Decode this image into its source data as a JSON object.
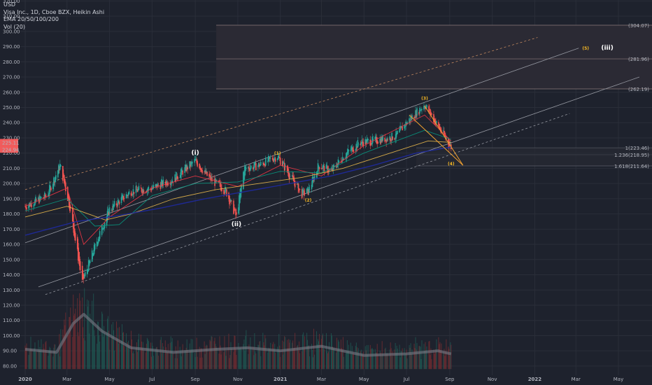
{
  "legend": {
    "currency": "USD",
    "title": "Visa Inc., 1D, Cboe BZX, Heikin Ashi",
    "ema": "EMA 20/50/100/200",
    "vol": "Vol (20)"
  },
  "colors": {
    "background": "#1e222d",
    "up": "#26a69a",
    "down": "#ef5350",
    "ema20": "#f23645",
    "ema50": "#089981",
    "ema100": "#e8b84b",
    "ema200": "#1e2aa0",
    "wave_label": "#f6b824",
    "price_badge": "#f15c5c"
  },
  "price_badges": [
    "225.11",
    "224.94"
  ],
  "chart_data": {
    "type": "line",
    "title": "Visa Inc., 1D, Cboe BZX, Heikin Ashi",
    "y_ticks": [
      80,
      90,
      100,
      110,
      120,
      130,
      140,
      150,
      160,
      170,
      180,
      190,
      200,
      210,
      220,
      230,
      240,
      250,
      260,
      270,
      280,
      290,
      300,
      310,
      320
    ],
    "ylim": [
      77,
      321
    ],
    "x_ticks": [
      "2020",
      "Mar",
      "May",
      "Jul",
      "Sep",
      "Nov",
      "2021",
      "Mar",
      "May",
      "Jul",
      "Sep",
      "Nov",
      "2022",
      "Mar",
      "May"
    ],
    "x_tick_dates": [
      "2020-01-01",
      "2020-03-01",
      "2020-05-01",
      "2020-07-01",
      "2020-09-01",
      "2020-11-01",
      "2021-01-01",
      "2021-03-01",
      "2021-05-01",
      "2021-07-01",
      "2021-09-01",
      "2021-11-01",
      "2022-01-01",
      "2022-03-01",
      "2022-05-01"
    ],
    "price_series": {
      "name": "Visa Inc.",
      "x": [
        "2020-01-01",
        "2020-02-01",
        "2020-02-20",
        "2020-03-05",
        "2020-03-23",
        "2020-04-15",
        "2020-05-01",
        "2020-06-01",
        "2020-07-01",
        "2020-08-01",
        "2020-09-01",
        "2020-09-20",
        "2020-10-15",
        "2020-10-30",
        "2020-11-10",
        "2020-12-01",
        "2020-12-28",
        "2021-01-15",
        "2021-02-01",
        "2021-02-10",
        "2021-02-25",
        "2021-03-15",
        "2021-04-01",
        "2021-04-25",
        "2021-05-15",
        "2021-06-15",
        "2021-07-01",
        "2021-07-27",
        "2021-08-20",
        "2021-09-03"
      ],
      "values": [
        185,
        192,
        212,
        185,
        135,
        165,
        183,
        195,
        197,
        203,
        215,
        204,
        195,
        178,
        210,
        212,
        218,
        205,
        193,
        195,
        212,
        208,
        218,
        227,
        228,
        231,
        240,
        252,
        234,
        224
      ]
    },
    "ema_series": [
      {
        "name": "EMA 20",
        "x": [
          "2020-01-01",
          "2020-03-01",
          "2020-03-25",
          "2020-05-01",
          "2020-07-01",
          "2020-09-01",
          "2020-11-01",
          "2021-01-01",
          "2021-03-01",
          "2021-05-01",
          "2021-07-27",
          "2021-09-03"
        ],
        "values": [
          185,
          197,
          160,
          178,
          197,
          205,
          198,
          212,
          205,
          225,
          245,
          228
        ]
      },
      {
        "name": "EMA 50",
        "x": [
          "2020-01-01",
          "2020-03-01",
          "2020-04-10",
          "2020-05-15",
          "2020-07-01",
          "2020-09-01",
          "2020-11-01",
          "2021-01-01",
          "2021-03-01",
          "2021-05-01",
          "2021-07-27",
          "2021-09-03"
        ],
        "values": [
          182,
          190,
          172,
          173,
          192,
          200,
          201,
          208,
          207,
          220,
          235,
          229
        ]
      },
      {
        "name": "EMA 100",
        "x": [
          "2020-01-01",
          "2020-03-01",
          "2020-04-25",
          "2020-06-01",
          "2020-08-01",
          "2020-10-01",
          "2020-12-01",
          "2021-02-01",
          "2021-04-01",
          "2021-06-01",
          "2021-08-01",
          "2021-09-03"
        ],
        "values": [
          178,
          185,
          176,
          180,
          190,
          196,
          200,
          204,
          210,
          219,
          228,
          227
        ]
      },
      {
        "name": "EMA 200",
        "x": [
          "2020-01-01",
          "2020-03-15",
          "2020-05-15",
          "2020-07-15",
          "2020-09-15",
          "2020-11-15",
          "2021-01-15",
          "2021-03-15",
          "2021-05-15",
          "2021-07-15",
          "2021-09-03"
        ],
        "values": [
          166,
          175,
          179,
          184,
          190,
          195,
          200,
          205,
          212,
          220,
          224
        ]
      }
    ],
    "volume_series": {
      "name": "Vol (20)",
      "x": [
        "2020-01-01",
        "2020-02-15",
        "2020-03-10",
        "2020-03-25",
        "2020-04-20",
        "2020-06-01",
        "2020-08-01",
        "2020-10-01",
        "2020-11-15",
        "2021-01-01",
        "2021-03-01",
        "2021-05-01",
        "2021-07-01",
        "2021-08-15",
        "2021-09-03"
      ],
      "values": [
        91,
        89,
        108,
        114,
        103,
        92,
        89,
        91,
        92,
        90,
        93,
        87,
        88,
        90,
        88
      ]
    },
    "fib_levels": [
      {
        "label": "(304.07)",
        "value": 304.07
      },
      {
        "label": "(281.96)",
        "value": 281.96
      },
      {
        "label": "(262.19)",
        "value": 262.19
      },
      {
        "label": "1(223.46)",
        "value": 223.46
      },
      {
        "label": "1.236(218.95)",
        "value": 218.95
      },
      {
        "label": "1.618(211.64)",
        "value": 211.64
      }
    ],
    "wave_labels": [
      {
        "text": "(i)",
        "x": "2020-09-01",
        "y": 219
      },
      {
        "text": "(ii)",
        "x": "2020-10-30",
        "y": 172
      },
      {
        "text": "(1)",
        "x": "2020-12-28",
        "y": 219
      },
      {
        "text": "(2)",
        "x": "2021-02-10",
        "y": 188
      },
      {
        "text": "(3)",
        "x": "2021-07-27",
        "y": 255
      },
      {
        "text": "(4)",
        "x": "2021-09-03",
        "y": 212
      },
      {
        "text": "(5)",
        "x": "2022-03-15",
        "y": 288
      },
      {
        "text": "(iii)",
        "x": "2022-04-15",
        "y": 288
      }
    ]
  }
}
